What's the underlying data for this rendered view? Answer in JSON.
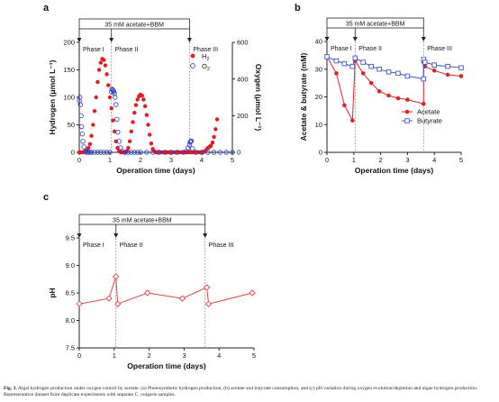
{
  "panel_labels": [
    "a",
    "b",
    "c"
  ],
  "caption": {
    "label": "Fig. 3.",
    "text": "Algal hydrogen production under oxygen control by acetate. (a) Photosynthetic hydrogen production, (b) acetate and butyrate consumption, and (c) pH variation during oxygen evolution/depletion and algae hydrogen production. Representative dataset from duplicate experiments with separate C. vulgaris samples."
  },
  "colors": {
    "hydrogen": "#e8191f",
    "oxygen": "#2b3cc4",
    "acetate": "#d9262b",
    "butyrate": "#3b57c6",
    "ph": "#e0444a",
    "axis": "#222222",
    "marker_line": "#888888"
  },
  "chart_data": [
    {
      "id": "a",
      "type": "scatter",
      "banner": "35 mM acetate+BBM",
      "phases": [
        "Phase I",
        "Phase II",
        "Phase III"
      ],
      "phase_boundaries": [
        0,
        1.05,
        3.6
      ],
      "xlabel": "Operation time (days)",
      "ylabel": "Hydrogen (μmol L⁻¹)",
      "ylabel_right": "Oxygen (μmol L⁻¹)",
      "xlim": [
        0,
        5
      ],
      "ylim": [
        0,
        200
      ],
      "ylim_right": [
        0,
        600
      ],
      "xticks": [
        0,
        1,
        2,
        3,
        4,
        5
      ],
      "yticks": [
        0,
        50,
        100,
        150,
        200
      ],
      "yticks_right": [
        0,
        200,
        400,
        600
      ],
      "legend_position": "top-right",
      "series": [
        {
          "name": "H2",
          "marker": "filled-circle",
          "axis": "left",
          "x": [
            0.0,
            0.05,
            0.1,
            0.15,
            0.2,
            0.25,
            0.3,
            0.35,
            0.4,
            0.45,
            0.5,
            0.55,
            0.6,
            0.65,
            0.7,
            0.75,
            0.8,
            0.85,
            0.9,
            0.95,
            1.0,
            1.05,
            1.1,
            1.15,
            1.2,
            1.25,
            1.3,
            1.35,
            1.4,
            1.45,
            1.5,
            1.55,
            1.6,
            1.65,
            1.7,
            1.75,
            1.8,
            1.85,
            1.9,
            1.95,
            2.0,
            2.05,
            2.1,
            2.15,
            2.2,
            2.25,
            2.3,
            2.35,
            2.4,
            2.45,
            2.5,
            2.55,
            2.6,
            2.65,
            2.7,
            2.75,
            2.8,
            2.85,
            2.9,
            2.95,
            3.0,
            3.05,
            3.1,
            3.15,
            3.2,
            3.25,
            3.3,
            3.35,
            3.4,
            3.45,
            3.5,
            3.55,
            3.6,
            3.65,
            3.7,
            3.75,
            3.8,
            3.85,
            3.9,
            3.95,
            4.0,
            4.05,
            4.1,
            4.15,
            4.2,
            4.25,
            4.3,
            4.35,
            4.4,
            4.45,
            4.5
          ],
          "y": [
            0,
            0,
            0,
            0,
            2,
            4,
            8,
            15,
            30,
            50,
            75,
            100,
            128,
            150,
            163,
            170,
            168,
            158,
            142,
            122,
            100,
            80,
            58,
            38,
            20,
            8,
            2,
            0,
            0,
            0,
            0,
            2,
            8,
            20,
            38,
            55,
            72,
            86,
            96,
            102,
            105,
            103,
            96,
            84,
            68,
            50,
            32,
            16,
            6,
            2,
            0,
            0,
            0,
            0,
            0,
            0,
            0,
            0,
            0,
            0,
            0,
            0,
            0,
            0,
            0,
            0,
            0,
            0,
            0,
            0,
            0,
            0,
            0,
            0,
            0,
            0,
            0,
            0,
            0,
            0,
            0,
            0,
            2,
            5,
            8,
            10,
            12,
            18,
            28,
            42,
            60
          ]
        },
        {
          "name": "O2",
          "marker": "open-circle",
          "axis": "right",
          "x": [
            0.0,
            0.02,
            0.04,
            0.06,
            0.08,
            0.1,
            0.12,
            0.15,
            0.2,
            0.25,
            0.3,
            0.35,
            0.4,
            0.5,
            0.6,
            0.7,
            0.8,
            0.9,
            1.0,
            1.05,
            1.07,
            1.09,
            1.11,
            1.13,
            1.15,
            1.17,
            1.2,
            1.23,
            1.26,
            1.3,
            1.35,
            1.4,
            1.5,
            1.6,
            1.7,
            1.8,
            1.9,
            2.0,
            2.2,
            2.4,
            2.6,
            2.8,
            3.0,
            3.2,
            3.4,
            3.5,
            3.55,
            3.6,
            3.62,
            3.64,
            3.66,
            3.7,
            3.8,
            4.0,
            4.2,
            4.4,
            4.6,
            4.8,
            5.0
          ],
          "y": [
            280,
            300,
            260,
            200,
            140,
            100,
            60,
            30,
            5,
            0,
            0,
            0,
            0,
            0,
            0,
            0,
            0,
            0,
            0,
            330,
            345,
            340,
            335,
            330,
            320,
            300,
            260,
            180,
            110,
            60,
            25,
            5,
            0,
            0,
            0,
            0,
            0,
            0,
            0,
            0,
            0,
            0,
            0,
            0,
            0,
            5,
            25,
            40,
            55,
            60,
            62,
            20,
            0,
            0,
            0,
            0,
            0,
            0,
            0
          ]
        }
      ]
    },
    {
      "id": "b",
      "type": "line",
      "banner": "35 mM acetate+BBM",
      "phases": [
        "Phase I",
        "Phase II",
        "Phase III"
      ],
      "phase_boundaries": [
        0,
        1.05,
        3.6
      ],
      "xlabel": "Operation time (days)",
      "ylabel": "Acetate & butyrate (mM)",
      "xlim": [
        0,
        5
      ],
      "ylim": [
        0,
        40
      ],
      "xticks": [
        0,
        1,
        2,
        3,
        4,
        5
      ],
      "yticks": [
        0,
        10,
        20,
        30,
        40
      ],
      "legend_position": "bottom-right",
      "series": [
        {
          "name": "Acetate",
          "marker": "filled-circle",
          "x": [
            0,
            0.35,
            0.65,
            0.95,
            1.05,
            1.35,
            1.65,
            1.95,
            2.3,
            2.65,
            3.0,
            3.6,
            3.6,
            3.65,
            4.0,
            4.5,
            5.0
          ],
          "y": [
            34.5,
            28.5,
            17,
            11.5,
            33,
            28.5,
            25,
            22,
            20.5,
            19.5,
            19,
            17.5,
            32.5,
            31,
            29.5,
            28,
            27.5
          ]
        },
        {
          "name": "Butyrate",
          "marker": "open-square",
          "x": [
            0,
            0.35,
            0.65,
            0.95,
            1.05,
            1.35,
            1.65,
            1.95,
            2.3,
            2.65,
            3.0,
            3.6,
            3.6,
            3.65,
            4.0,
            4.5,
            5.0
          ],
          "y": [
            34.5,
            33,
            32,
            31,
            34,
            32.5,
            31,
            30,
            29,
            28.5,
            27.5,
            26.5,
            33.5,
            32.5,
            31.5,
            31,
            30.5
          ]
        }
      ]
    },
    {
      "id": "c",
      "type": "line",
      "banner": "35 mM acetate+BBM",
      "phases": [
        "Phase I",
        "Phase II",
        "Phase III"
      ],
      "phase_boundaries": [
        0,
        1.05,
        3.6
      ],
      "xlabel": "Operation time (days)",
      "ylabel": "pH",
      "xlim": [
        0,
        5
      ],
      "ylim": [
        7.5,
        9.5
      ],
      "xticks": [
        0,
        1,
        2,
        3,
        4,
        5
      ],
      "yticks": [
        7.5,
        8.0,
        8.5,
        9.0,
        9.5
      ],
      "series": [
        {
          "name": "",
          "marker": "open-diamond",
          "x": [
            0,
            0.85,
            1.05,
            1.1,
            1.95,
            2.95,
            3.65,
            3.7,
            4.95
          ],
          "y": [
            8.3,
            8.4,
            8.8,
            8.3,
            8.5,
            8.4,
            8.6,
            8.3,
            8.5
          ]
        }
      ]
    }
  ]
}
